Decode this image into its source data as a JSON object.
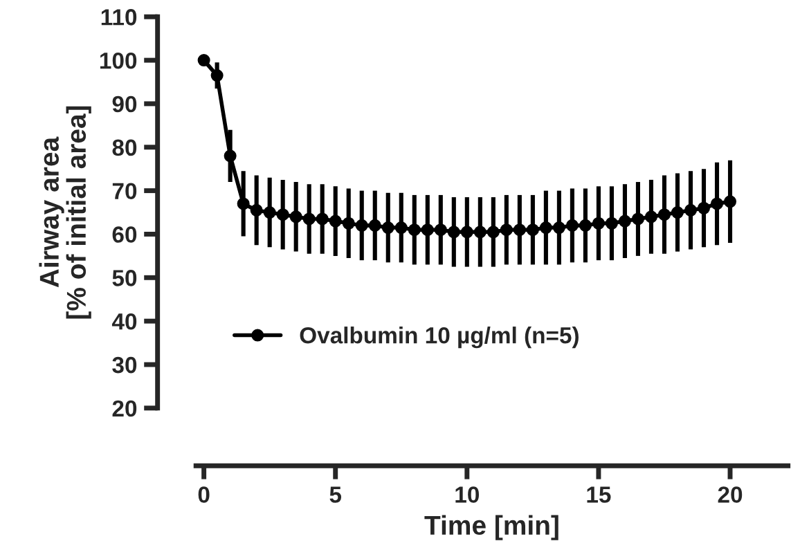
{
  "chart_data": {
    "type": "line",
    "xlabel": "Time [min]",
    "ylabel": "Airway area\n[% of initial area]",
    "xlim": [
      -0.3,
      22.2
    ],
    "ylim": [
      20,
      110
    ],
    "xticks": [
      0,
      5,
      10,
      15,
      20
    ],
    "yticks": [
      20,
      30,
      40,
      50,
      60,
      70,
      80,
      90,
      100,
      110
    ],
    "grid": false,
    "legend": "bottom left",
    "marker": "circle",
    "line_style": "solid",
    "series": [
      {
        "name": "Ovalbumin 10 µg/ml (n=5)",
        "color": "#000000",
        "x": [
          0,
          0.5,
          1,
          1.5,
          2,
          2.5,
          3,
          3.5,
          4,
          4.5,
          5,
          5.5,
          6,
          6.5,
          7,
          7.5,
          8,
          8.5,
          9,
          9.5,
          10,
          10.5,
          11,
          11.5,
          12,
          12.5,
          13,
          13.5,
          14,
          14.5,
          15,
          15.5,
          16,
          16.5,
          17,
          17.5,
          18,
          18.5,
          19,
          19.5,
          20
        ],
        "values": [
          100,
          96.5,
          78,
          67,
          65.5,
          65,
          64.5,
          64,
          63.5,
          63.5,
          63,
          62.5,
          62,
          62,
          61.5,
          61.5,
          61,
          61,
          61,
          60.5,
          60.5,
          60.5,
          60.5,
          61,
          61,
          61,
          61.5,
          61.5,
          62,
          62,
          62.5,
          62.5,
          63,
          63.5,
          64,
          64.5,
          65,
          65.5,
          66,
          67,
          67.5
        ],
        "errors": [
          0,
          3,
          6,
          7.5,
          8,
          8,
          8,
          8,
          8,
          8,
          8,
          8,
          8,
          8,
          8,
          8,
          8,
          8,
          8,
          8,
          8,
          8,
          8,
          8,
          8,
          8,
          8.5,
          8.5,
          8.5,
          8.5,
          8.5,
          8.5,
          8.5,
          8.5,
          8.5,
          9,
          9,
          9,
          9,
          9.5,
          9.5
        ]
      }
    ]
  }
}
